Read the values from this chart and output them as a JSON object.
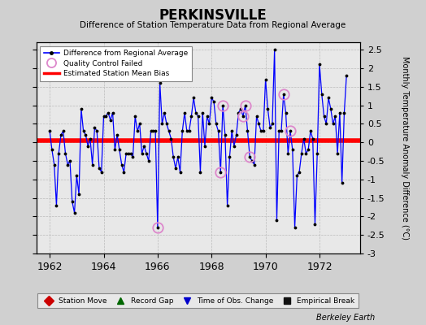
{
  "title": "PERKINSVILLE",
  "subtitle": "Difference of Station Temperature Data from Regional Average",
  "ylabel": "Monthly Temperature Anomaly Difference (°C)",
  "bias": 0.05,
  "xlim": [
    1961.5,
    1973.5
  ],
  "ylim": [
    -3.0,
    2.7
  ],
  "yticks": [
    -3,
    -2.5,
    -2,
    -1.5,
    -1,
    -0.5,
    0,
    0.5,
    1,
    1.5,
    2,
    2.5
  ],
  "xticks": [
    1962,
    1964,
    1966,
    1968,
    1970,
    1972
  ],
  "background_color": "#e8e8e8",
  "outer_color": "#d0d0d0",
  "line_color": "blue",
  "bias_color": "red",
  "times": [
    1962.0,
    1962.083,
    1962.167,
    1962.25,
    1962.333,
    1962.417,
    1962.5,
    1962.583,
    1962.667,
    1962.75,
    1962.833,
    1962.917,
    1963.0,
    1963.083,
    1963.167,
    1963.25,
    1963.333,
    1963.417,
    1963.5,
    1963.583,
    1963.667,
    1963.75,
    1963.833,
    1963.917,
    1964.0,
    1964.083,
    1964.167,
    1964.25,
    1964.333,
    1964.417,
    1964.5,
    1964.583,
    1964.667,
    1964.75,
    1964.833,
    1964.917,
    1965.0,
    1965.083,
    1965.167,
    1965.25,
    1965.333,
    1965.417,
    1965.5,
    1965.583,
    1965.667,
    1965.75,
    1965.833,
    1965.917,
    1966.0,
    1966.083,
    1966.167,
    1966.25,
    1966.333,
    1966.417,
    1966.5,
    1966.583,
    1966.667,
    1966.75,
    1966.833,
    1966.917,
    1967.0,
    1967.083,
    1967.167,
    1967.25,
    1967.333,
    1967.417,
    1967.5,
    1967.583,
    1967.667,
    1967.75,
    1967.833,
    1967.917,
    1968.0,
    1968.083,
    1968.167,
    1968.25,
    1968.333,
    1968.417,
    1968.5,
    1968.583,
    1968.667,
    1968.75,
    1968.833,
    1968.917,
    1969.0,
    1969.083,
    1969.167,
    1969.25,
    1969.333,
    1969.417,
    1969.5,
    1969.583,
    1969.667,
    1969.75,
    1969.833,
    1969.917,
    1970.0,
    1970.083,
    1970.167,
    1970.25,
    1970.333,
    1970.417,
    1970.5,
    1970.583,
    1970.667,
    1970.75,
    1970.833,
    1970.917,
    1971.0,
    1971.083,
    1971.167,
    1971.25,
    1971.333,
    1971.417,
    1971.5,
    1971.583,
    1971.667,
    1971.75,
    1971.833,
    1971.917,
    1972.0,
    1972.083,
    1972.167,
    1972.25,
    1972.333,
    1972.417,
    1972.5,
    1972.583,
    1972.667,
    1972.75,
    1972.833,
    1972.917,
    1973.0
  ],
  "values": [
    0.3,
    -0.2,
    -0.6,
    -1.7,
    -0.3,
    0.2,
    0.3,
    -0.3,
    -0.6,
    -0.5,
    -1.6,
    -1.9,
    -0.9,
    -1.4,
    0.9,
    0.3,
    0.2,
    -0.1,
    0.1,
    -0.6,
    0.4,
    0.3,
    -0.7,
    -0.8,
    0.7,
    0.7,
    0.8,
    0.6,
    0.8,
    -0.2,
    0.2,
    -0.2,
    -0.6,
    -0.8,
    -0.3,
    -0.3,
    -0.3,
    -0.4,
    0.7,
    0.3,
    0.5,
    -0.3,
    -0.1,
    -0.3,
    -0.5,
    0.3,
    0.3,
    0.3,
    -2.3,
    1.6,
    0.5,
    0.8,
    0.5,
    0.3,
    0.1,
    -0.4,
    -0.7,
    -0.4,
    -0.8,
    0.3,
    0.8,
    0.3,
    0.3,
    0.7,
    1.2,
    0.8,
    0.7,
    -0.8,
    0.8,
    -0.1,
    0.7,
    0.5,
    1.2,
    1.1,
    0.5,
    0.3,
    -0.8,
    1.0,
    0.2,
    -1.7,
    -0.4,
    0.3,
    -0.1,
    0.2,
    0.8,
    0.9,
    0.7,
    1.0,
    0.3,
    -0.4,
    -0.5,
    -0.6,
    0.7,
    0.5,
    0.3,
    0.3,
    1.7,
    0.9,
    0.4,
    0.5,
    2.5,
    -2.1,
    0.3,
    0.3,
    1.3,
    0.8,
    -0.3,
    0.3,
    -0.2,
    -2.3,
    -0.9,
    -0.8,
    -0.3,
    0.1,
    -0.3,
    -0.2,
    0.3,
    0.1,
    -2.2,
    -0.3,
    2.1,
    1.3,
    0.7,
    0.5,
    1.2,
    0.9,
    0.5,
    0.7,
    -0.3,
    0.8,
    -1.1,
    0.8,
    1.8
  ],
  "qc_failed_indices": [
    48,
    76,
    77,
    86,
    87,
    89,
    104,
    107
  ],
  "legend_bottom": [
    {
      "label": "Station Move",
      "color": "#cc0000",
      "marker": "D"
    },
    {
      "label": "Record Gap",
      "color": "#006600",
      "marker": "^"
    },
    {
      "label": "Time of Obs. Change",
      "color": "#0000cc",
      "marker": "v"
    },
    {
      "label": "Empirical Break",
      "color": "#111111",
      "marker": "s"
    }
  ]
}
